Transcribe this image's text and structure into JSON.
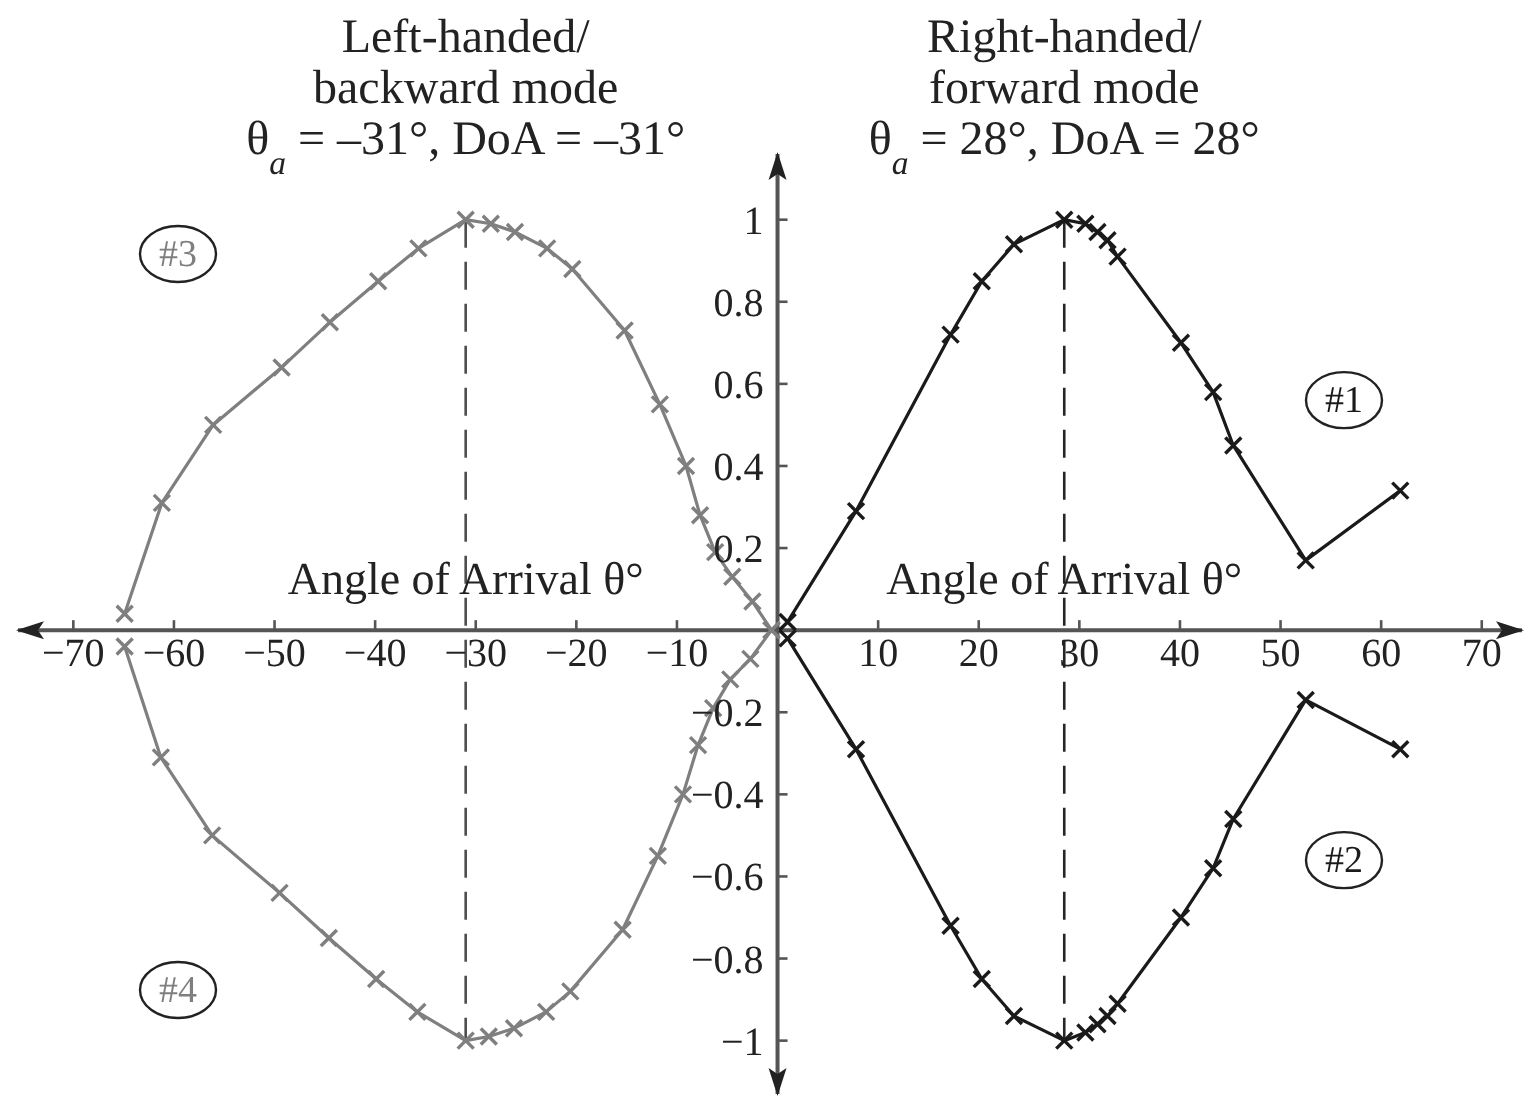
{
  "chart_data": {
    "type": "line",
    "xlabel": "Angle of Arrival θ°",
    "series": [
      {
        "name": "#1",
        "color": "#1a1a1a",
        "x": [
          1,
          7.8,
          17.2,
          20.3,
          23.5,
          28.5,
          30.6,
          31.8,
          32.8,
          33.8,
          40.1,
          43.3,
          45.3,
          52.5,
          61.9
        ],
        "values": [
          0.02,
          0.29,
          0.72,
          0.85,
          0.94,
          1.0,
          0.99,
          0.97,
          0.95,
          0.91,
          0.7,
          0.58,
          0.45,
          0.17,
          0.34
        ]
      },
      {
        "name": "#2",
        "color": "#1a1a1a",
        "x": [
          1,
          7.8,
          17.2,
          20.3,
          23.5,
          28.5,
          30.6,
          31.8,
          32.8,
          33.8,
          40.1,
          43.3,
          45.3,
          52.5,
          61.9
        ],
        "values": [
          -0.02,
          -0.29,
          -0.72,
          -0.85,
          -0.94,
          -1.0,
          -0.98,
          -0.96,
          -0.94,
          -0.91,
          -0.7,
          -0.58,
          -0.46,
          -0.17,
          -0.29
        ]
      },
      {
        "name": "#3",
        "color": "#7f7f7f",
        "x": [
          -64.9,
          -61.2,
          -56.1,
          -49.3,
          -44.5,
          -39.7,
          -35.7,
          -31,
          -28.5,
          -26.1,
          -22.9,
          -20.4,
          -15.2,
          -11.7,
          -9.1,
          -7.7,
          -6.2,
          -4.5,
          -2.5,
          -0.6
        ],
        "values": [
          0.04,
          0.31,
          0.5,
          0.64,
          0.75,
          0.85,
          0.93,
          1.0,
          0.99,
          0.97,
          0.93,
          0.88,
          0.73,
          0.55,
          0.4,
          0.28,
          0.19,
          0.13,
          0.07,
          0.0
        ]
      },
      {
        "name": "#4",
        "color": "#7f7f7f",
        "x": [
          -64.9,
          -61.3,
          -56.2,
          -49.5,
          -44.6,
          -39.9,
          -35.8,
          -31,
          -28.7,
          -26.2,
          -23.0,
          -20.6,
          -15.4,
          -11.9,
          -9.4,
          -7.9,
          -6.4,
          -4.7,
          -2.7,
          -0.6
        ],
        "values": [
          -0.04,
          -0.31,
          -0.5,
          -0.64,
          -0.75,
          -0.85,
          -0.93,
          -1.0,
          -0.99,
          -0.97,
          -0.93,
          -0.88,
          -0.73,
          -0.55,
          -0.4,
          -0.28,
          -0.19,
          -0.12,
          -0.07,
          0.0
        ]
      }
    ],
    "xlim": [
      -75.5,
      74
    ],
    "ylim": [
      -1.13,
      1.16
    ],
    "xticks": [
      -70,
      -60,
      -50,
      -40,
      -30,
      -20,
      -10,
      10,
      20,
      30,
      40,
      50,
      60,
      70
    ],
    "yticks": [
      -1,
      -0.8,
      -0.6,
      -0.4,
      -0.2,
      0.2,
      0.4,
      0.6,
      0.8,
      1
    ],
    "ref_lines": [
      {
        "axis": "x",
        "value": -31,
        "label": "Left-handed/\nbackward mode\nθ$_{a}$ = –31°, DoA = –31°",
        "line_style": "dashed",
        "color": "#4d4d4d"
      },
      {
        "axis": "x",
        "value": 28.5,
        "label": "Right-handed/\nforward mode\nθ$_{a}$ = 28°, DoA = 28°",
        "line_style": "dashed",
        "color": "#262626"
      }
    ],
    "grid": false,
    "marker": "cross",
    "line_style": "solid"
  }
}
